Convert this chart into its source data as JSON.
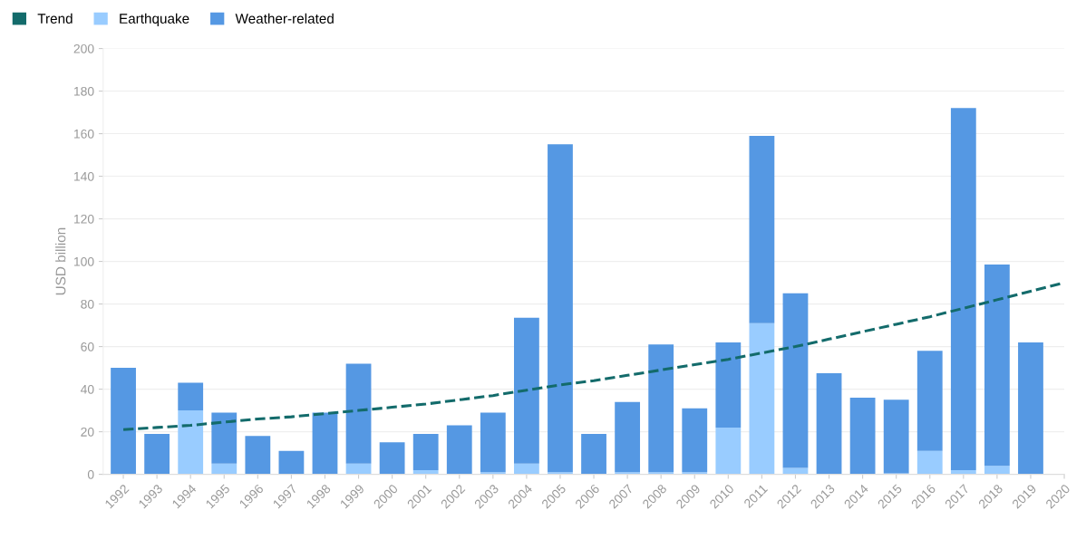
{
  "chart_data": {
    "type": "bar",
    "stacked": true,
    "ylabel": "USD billion",
    "ylim": [
      0,
      200
    ],
    "yticks": [
      0,
      20,
      40,
      60,
      80,
      100,
      120,
      140,
      160,
      180,
      200
    ],
    "grid": "y",
    "legend": "top left",
    "categories": [
      "1992",
      "1993",
      "1994",
      "1995",
      "1996",
      "1997",
      "1998",
      "1999",
      "2000",
      "2001",
      "2002",
      "2003",
      "2004",
      "2005",
      "2006",
      "2007",
      "2008",
      "2009",
      "2010",
      "2011",
      "2012",
      "2013",
      "2014",
      "2015",
      "2016",
      "2017",
      "2018",
      "2019",
      "2020"
    ],
    "series": [
      {
        "name": "Trend",
        "type": "line",
        "line_style": "dashed",
        "marker": "none",
        "color": "#136b6b",
        "values": [
          21,
          22,
          23,
          24.5,
          26,
          27,
          28.5,
          30,
          31.5,
          33,
          35,
          37,
          39.5,
          42,
          44,
          46.5,
          49,
          51.5,
          54,
          57,
          60,
          63.5,
          67,
          70.5,
          74,
          78,
          82,
          86,
          90
        ]
      },
      {
        "name": "Earthquake",
        "color": "#99ccff",
        "values": [
          0,
          0,
          30,
          5,
          0,
          0,
          0,
          5,
          0,
          2,
          0,
          1,
          5,
          1,
          0,
          1,
          1,
          1,
          22,
          71,
          3,
          0,
          0,
          0.5,
          11,
          2,
          4,
          0,
          null
        ]
      },
      {
        "name": "Weather-related",
        "color": "#5598e3",
        "values": [
          50,
          19,
          13,
          24,
          18,
          11,
          29,
          47,
          15,
          17,
          23,
          28,
          68.5,
          154,
          19,
          33,
          60,
          30,
          40,
          88,
          82,
          47.5,
          36,
          34.5,
          47,
          170,
          94.5,
          62,
          null
        ]
      }
    ]
  }
}
